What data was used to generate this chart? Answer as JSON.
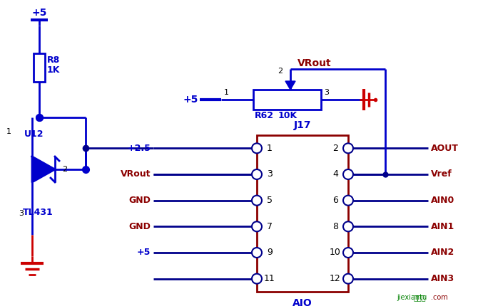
{
  "bg": "#ffffff",
  "blue": "#0000cc",
  "navy": "#00008b",
  "red": "#cc0000",
  "dark_red": "#8b0000",
  "black": "#000000",
  "green": "#008000",
  "wire_color": "#00008b",
  "tl431_pin_labels": [
    "1",
    "2",
    "3"
  ],
  "r62_label": "R62",
  "r62_val": "10K",
  "r8_label": "R8",
  "r8_val": "1K",
  "u12_label": "U12",
  "comp_label": "TL431",
  "j17_name": "J17",
  "j17_sub": "AIO",
  "vrout": "VRout",
  "left_labels": [
    "+2.5",
    "VRout",
    "GND",
    "GND",
    "+5",
    ""
  ],
  "right_labels": [
    "AOUT",
    "Vref",
    "AIN0",
    "AIN1",
    "AIN2",
    "AIN3"
  ],
  "left_pins": [
    "1",
    "3",
    "5",
    "7",
    "9",
    "11"
  ],
  "right_pins": [
    "2",
    "4",
    "6",
    "8",
    "10",
    "12"
  ]
}
